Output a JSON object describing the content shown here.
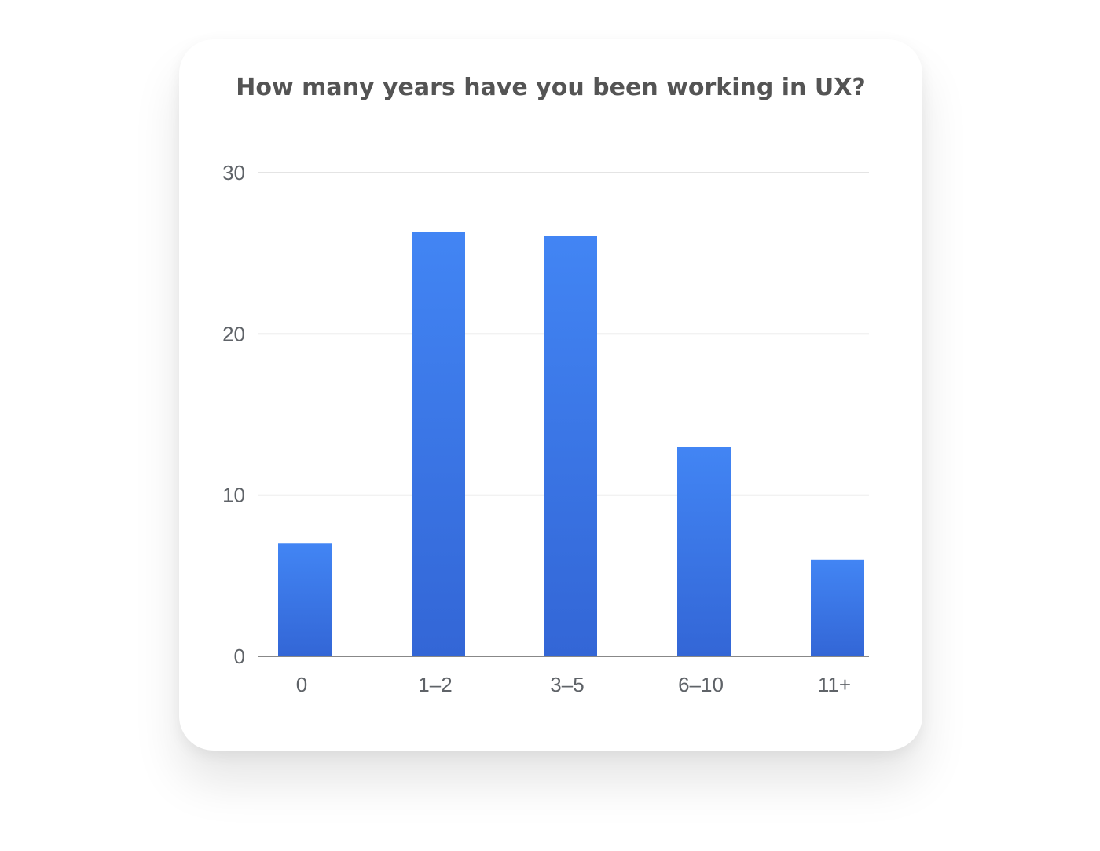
{
  "chart_data": {
    "type": "bar",
    "title": "How many years have you been working in UX?",
    "xlabel": "",
    "ylabel": "",
    "categories": [
      "0",
      "1–2",
      "3–5",
      "6–10",
      "11+"
    ],
    "values": [
      7,
      26.3,
      26.1,
      13,
      6
    ],
    "ylim": [
      0,
      30
    ],
    "yticks": [
      "0",
      "10",
      "20",
      "30"
    ],
    "grid": true,
    "legend": "none",
    "colors": {
      "bar_top": "#4285f4",
      "bar_bottom": "#3366d6",
      "grid": "#dcdcdc",
      "axis": "#888888"
    }
  }
}
